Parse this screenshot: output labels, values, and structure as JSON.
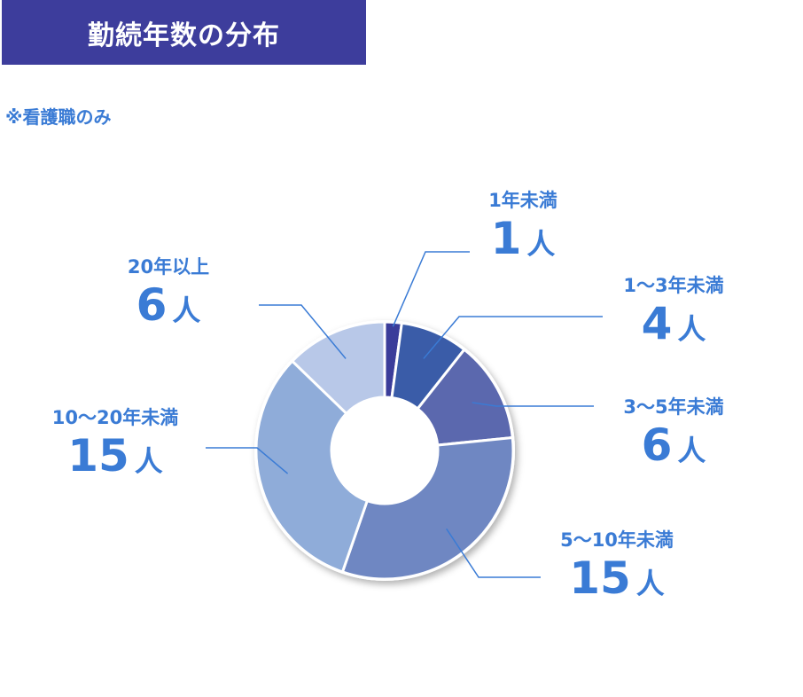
{
  "header": {
    "title": "勤続年数の分布",
    "note": "※看護職のみ"
  },
  "chart_data": {
    "type": "pie",
    "donut": true,
    "title": "勤続年数の分布",
    "unit": "人",
    "categories": [
      "1年未満",
      "1〜3年未満",
      "3〜5年未満",
      "5〜10年未満",
      "10〜20年未満",
      "20年以上"
    ],
    "values": [
      1,
      4,
      6,
      15,
      15,
      6
    ],
    "colors": [
      "#3b3d9a",
      "#3a5ca8",
      "#5b68ae",
      "#6f87c2",
      "#8facd9",
      "#b8c8e8"
    ],
    "label_color": "#3a7bd5",
    "legend": "none"
  }
}
